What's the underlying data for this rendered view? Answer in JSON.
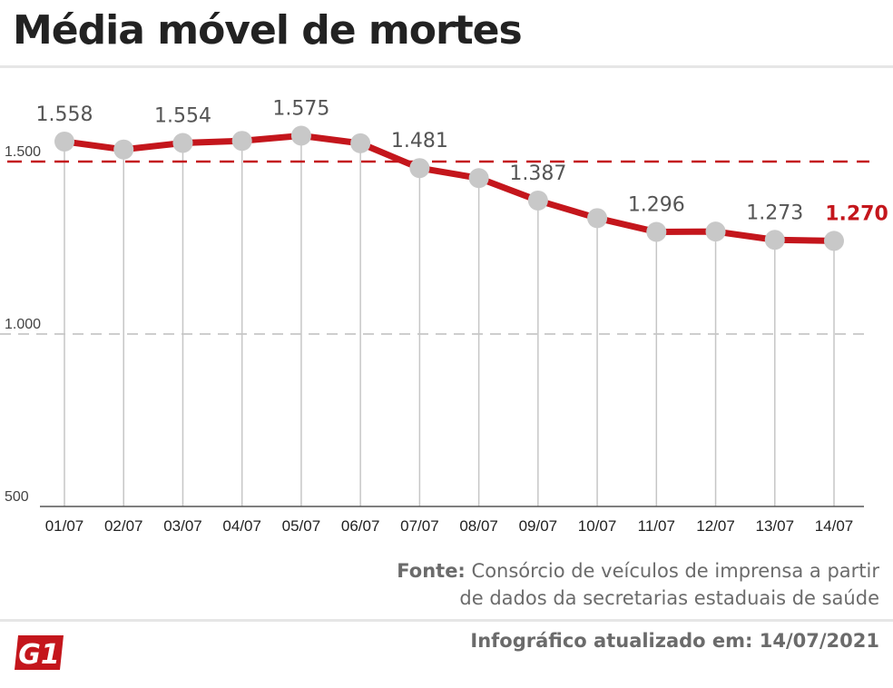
{
  "title": "Média móvel de mortes",
  "source_label": "Fonte:",
  "source_line1": "Consórcio de veículos de imprensa a partir",
  "source_line2": "de dados da secretarias estaduais de saúde",
  "updated": "Infográfico atualizado em: 14/07/2021",
  "logo_text": "G1",
  "colors": {
    "line": "#c4161c",
    "marker": "#c8c8c8",
    "highlight": "#c4161c",
    "text": "#555555"
  },
  "chart_data": {
    "type": "line",
    "categories": [
      "01/07",
      "02/07",
      "03/07",
      "04/07",
      "05/07",
      "06/07",
      "07/07",
      "08/07",
      "09/07",
      "10/07",
      "11/07",
      "12/07",
      "13/07",
      "14/07"
    ],
    "series": [
      {
        "values": [
          1558,
          1535,
          1554,
          1560,
          1575,
          1553,
          1481,
          1452,
          1387,
          1336,
          1296,
          1297,
          1273,
          1270
        ]
      }
    ],
    "data_labels": [
      {
        "index": 0,
        "text": "1.558"
      },
      {
        "index": 2,
        "text": "1.554"
      },
      {
        "index": 4,
        "text": "1.575"
      },
      {
        "index": 6,
        "text": "1.481"
      },
      {
        "index": 8,
        "text": "1.387"
      },
      {
        "index": 10,
        "text": "1.296"
      },
      {
        "index": 12,
        "text": "1.273"
      },
      {
        "index": 13,
        "text": "1.270"
      }
    ],
    "yticks": [
      {
        "value": 500,
        "label": "500"
      },
      {
        "value": 1000,
        "label": "1.000"
      },
      {
        "value": 1500,
        "label": "1.500"
      }
    ],
    "reference_line": 1500,
    "ylim": [
      500,
      1650
    ]
  }
}
